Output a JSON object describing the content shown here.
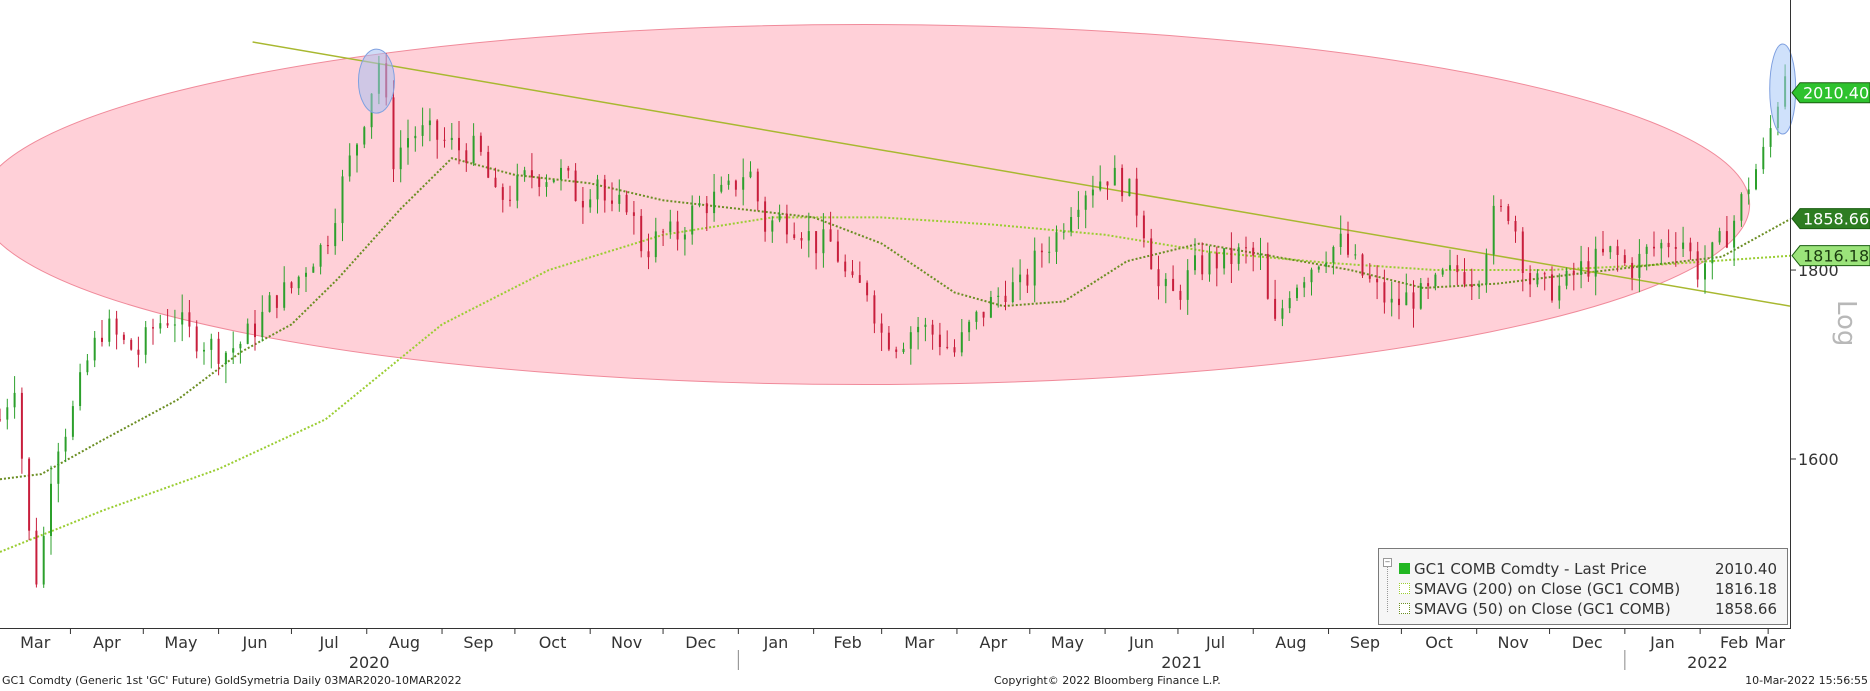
{
  "chart_data": {
    "type": "candlestick-line",
    "instrument": "GC1 Comdty",
    "scale": "Log",
    "ylim": [
      1440,
      2130
    ],
    "y_ticks": [
      1600,
      1800
    ],
    "x_months": [
      "Mar",
      "Apr",
      "May",
      "Jun",
      "Jul",
      "Aug",
      "Sep",
      "Oct",
      "Nov",
      "Dec",
      "Jan",
      "Feb",
      "Mar",
      "Apr",
      "May",
      "Jun",
      "Jul",
      "Aug",
      "Sep",
      "Oct",
      "Nov",
      "Dec",
      "Jan",
      "Feb",
      "Mar"
    ],
    "x_years": [
      "2020",
      "2021",
      "2022"
    ],
    "x_month_starts": [
      "2020-03-01",
      "2020-04-01",
      "2020-05-01",
      "2020-06-01",
      "2020-07-01",
      "2020-08-01",
      "2020-09-01",
      "2020-10-01",
      "2020-11-01",
      "2020-12-01",
      "2021-01-01",
      "2021-02-01",
      "2021-03-01",
      "2021-04-01",
      "2021-05-01",
      "2021-06-01",
      "2021-07-01",
      "2021-08-01",
      "2021-09-01",
      "2021-10-01",
      "2021-11-01",
      "2021-12-01",
      "2022-01-01",
      "2022-02-01",
      "2022-03-01"
    ],
    "x_range": [
      "2020-03-03",
      "2022-03-10"
    ],
    "series": [
      {
        "name": "GC1 COMB Comdty - Last Price",
        "value_label": "2010.40",
        "color": "#c81e3c",
        "up_color": "#2ca02c",
        "dates": [
          "2020-03-03",
          "2020-03-09",
          "2020-03-16",
          "2020-03-19",
          "2020-03-25",
          "2020-04-01",
          "2020-04-08",
          "2020-04-15",
          "2020-04-22",
          "2020-04-29",
          "2020-05-06",
          "2020-05-13",
          "2020-05-20",
          "2020-05-27",
          "2020-06-03",
          "2020-06-10",
          "2020-06-17",
          "2020-06-24",
          "2020-07-01",
          "2020-07-08",
          "2020-07-15",
          "2020-07-22",
          "2020-07-29",
          "2020-08-06",
          "2020-08-12",
          "2020-08-19",
          "2020-08-26",
          "2020-09-02",
          "2020-09-09",
          "2020-09-16",
          "2020-09-23",
          "2020-09-30",
          "2020-10-07",
          "2020-10-14",
          "2020-10-21",
          "2020-10-28",
          "2020-11-04",
          "2020-11-09",
          "2020-11-16",
          "2020-11-23",
          "2020-11-30",
          "2020-12-07",
          "2020-12-14",
          "2020-12-21",
          "2020-12-28",
          "2021-01-05",
          "2021-01-12",
          "2021-01-19",
          "2021-01-26",
          "2021-02-02",
          "2021-02-09",
          "2021-02-16",
          "2021-02-23",
          "2021-03-01",
          "2021-03-08",
          "2021-03-15",
          "2021-03-22",
          "2021-03-31",
          "2021-04-07",
          "2021-04-14",
          "2021-04-21",
          "2021-04-28",
          "2021-05-05",
          "2021-05-12",
          "2021-05-19",
          "2021-05-26",
          "2021-06-02",
          "2021-06-09",
          "2021-06-16",
          "2021-06-23",
          "2021-06-30",
          "2021-07-07",
          "2021-07-14",
          "2021-07-21",
          "2021-07-28",
          "2021-08-04",
          "2021-08-09",
          "2021-08-16",
          "2021-08-23",
          "2021-08-30",
          "2021-09-06",
          "2021-09-13",
          "2021-09-20",
          "2021-09-27",
          "2021-10-04",
          "2021-10-11",
          "2021-10-18",
          "2021-10-25",
          "2021-11-01",
          "2021-11-08",
          "2021-11-15",
          "2021-11-22",
          "2021-11-29",
          "2021-12-06",
          "2021-12-13",
          "2021-12-20",
          "2021-12-27",
          "2022-01-03",
          "2022-01-10",
          "2022-01-17",
          "2022-01-24",
          "2022-01-31",
          "2022-02-07",
          "2022-02-14",
          "2022-02-21",
          "2022-02-28",
          "2022-03-04",
          "2022-03-08",
          "2022-03-10"
        ],
        "values": [
          1640,
          1680,
          1500,
          1480,
          1610,
          1640,
          1700,
          1740,
          1720,
          1710,
          1740,
          1750,
          1730,
          1720,
          1710,
          1720,
          1740,
          1770,
          1780,
          1810,
          1830,
          1900,
          1960,
          2050,
          1930,
          1960,
          1960,
          1950,
          1940,
          1940,
          1880,
          1890,
          1910,
          1910,
          1910,
          1880,
          1910,
          1860,
          1880,
          1820,
          1840,
          1840,
          1870,
          1880,
          1890,
          1920,
          1850,
          1860,
          1850,
          1830,
          1830,
          1780,
          1780,
          1730,
          1720,
          1740,
          1730,
          1710,
          1740,
          1760,
          1780,
          1780,
          1820,
          1840,
          1880,
          1900,
          1910,
          1900,
          1860,
          1780,
          1770,
          1800,
          1810,
          1810,
          1820,
          1810,
          1730,
          1780,
          1800,
          1820,
          1830,
          1800,
          1780,
          1760,
          1770,
          1770,
          1790,
          1800,
          1790,
          1860,
          1870,
          1790,
          1780,
          1780,
          1800,
          1810,
          1820,
          1800,
          1820,
          1830,
          1840,
          1800,
          1820,
          1850,
          1900,
          1940,
          1990,
          2040,
          2010
        ]
      },
      {
        "name": "SMAVG (200)  on Close (GC1 COMB)",
        "value_label": "1816.18",
        "color": "#9acd32",
        "dates": [
          "2020-03-03",
          "2020-04-15",
          "2020-06-01",
          "2020-07-15",
          "2020-09-01",
          "2020-10-15",
          "2020-12-01",
          "2021-01-15",
          "2021-03-01",
          "2021-04-15",
          "2021-06-01",
          "2021-07-15",
          "2021-09-01",
          "2021-10-15",
          "2021-12-01",
          "2022-01-15",
          "2022-03-10"
        ],
        "values": [
          1510,
          1550,
          1590,
          1640,
          1740,
          1800,
          1840,
          1860,
          1860,
          1852,
          1840,
          1820,
          1808,
          1800,
          1800,
          1806,
          1816
        ]
      },
      {
        "name": "SMAVG (50)  on Close (GC1 COMB)",
        "value_label": "1858.66",
        "color": "#6b8e23",
        "dates": [
          "2020-03-03",
          "2020-03-20",
          "2020-04-15",
          "2020-05-15",
          "2020-06-10",
          "2020-07-01",
          "2020-07-20",
          "2020-08-15",
          "2020-09-05",
          "2020-10-01",
          "2020-11-01",
          "2020-12-01",
          "2021-01-01",
          "2021-02-01",
          "2021-03-01",
          "2021-03-31",
          "2021-04-20",
          "2021-05-15",
          "2021-06-10",
          "2021-07-10",
          "2021-08-10",
          "2021-09-10",
          "2021-10-10",
          "2021-11-10",
          "2021-12-10",
          "2022-01-10",
          "2022-02-10",
          "2022-03-10"
        ],
        "values": [
          1580,
          1585,
          1620,
          1660,
          1710,
          1740,
          1790,
          1870,
          1930,
          1910,
          1900,
          1880,
          1870,
          1860,
          1830,
          1775,
          1760,
          1765,
          1810,
          1830,
          1815,
          1800,
          1780,
          1785,
          1795,
          1805,
          1815,
          1858
        ]
      }
    ],
    "annotations": {
      "trendline": {
        "from": [
          "2020-06-15",
          2075
        ],
        "to": [
          "2022-03-10",
          1760
        ],
        "color": "#a8b830"
      },
      "ellipse": {
        "center": [
          "2021-02-22",
          1875
        ],
        "color": "#ffc0cb"
      },
      "highlight_circles": [
        {
          "date": "2020-08-05",
          "value": 2025,
          "color": "#a8c0f0"
        },
        {
          "date": "2022-03-07",
          "value": 2015,
          "color": "#a8c8f8"
        }
      ]
    },
    "value_tags": [
      {
        "label": "2010.40",
        "color": "#2ec22e"
      },
      {
        "label": "1858.66",
        "color": "#2e7d22"
      },
      {
        "label": "1816.18",
        "color": "#9be37a"
      }
    ]
  },
  "legend": {
    "items": [
      {
        "name": "GC1 COMB Comdty - Last Price",
        "value": "2010.40",
        "color": "#22b722"
      },
      {
        "name": "SMAVG (200)  on Close (GC1 COMB)",
        "value": "1816.18",
        "color": "#d8f5c0"
      },
      {
        "name": "SMAVG (50)  on Close (GC1 COMB)",
        "value": "1858.66",
        "color": "#e8f0e0"
      }
    ]
  },
  "footer": {
    "left": "GC1 Comdty (Generic 1st 'GC' Future) GoldSymetria  Daily 03MAR2020-10MAR2022",
    "center": "Copyright© 2022 Bloomberg Finance L.P.",
    "right": "10-Mar-2022 15:56:55"
  }
}
